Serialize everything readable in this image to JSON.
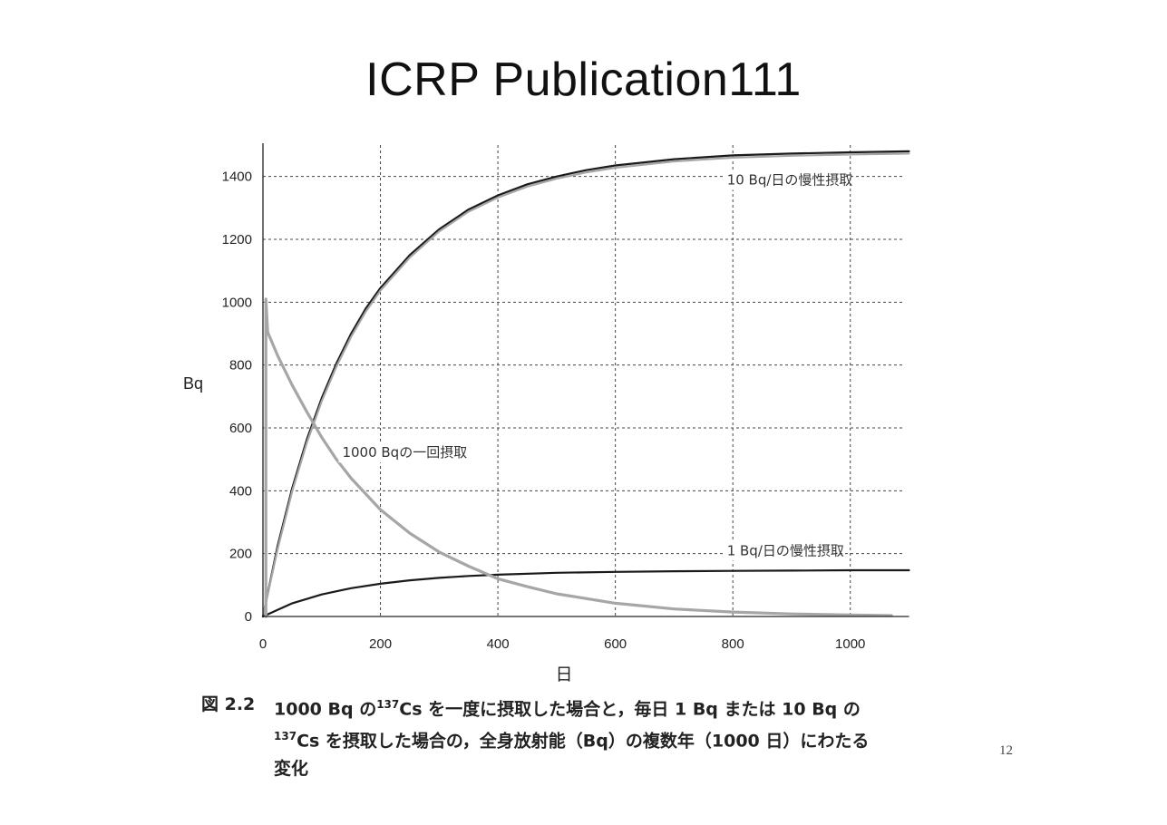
{
  "slide": {
    "title": "ICRP Publication111",
    "page_number": "12"
  },
  "caption": {
    "figure_number": "図 2.2",
    "line1_pre": "1000 Bq の",
    "line1_sup": "137",
    "line1_post": "Cs を一度に摂取した場合と，毎日 1 Bq または 10 Bq の",
    "line2_sup": "137",
    "line2_post": "Cs を摂取した場合の，全身放射能（Bq）の複数年（1000 日）にわたる",
    "line3": "変化"
  },
  "chart_data": {
    "type": "line",
    "xlabel": "日",
    "ylabel": "Bq",
    "xlim": [
      0,
      1100
    ],
    "ylim": [
      0,
      1500
    ],
    "xticks": [
      0,
      200,
      400,
      600,
      800,
      1000
    ],
    "yticks": [
      0,
      200,
      400,
      600,
      800,
      1000,
      1200,
      1400
    ],
    "grid": true,
    "grid_style": "dashed",
    "colors": {
      "black": "#1a1a1a",
      "gray": "#a6a6a6",
      "grid": "#444444",
      "axis": "#222222"
    },
    "annotations": [
      {
        "text": "10 Bq/日の慢性摂取",
        "x": 790,
        "y": 1375
      },
      {
        "text": "1000 Bqの一回摂取",
        "x": 135,
        "y": 507
      },
      {
        "text": "1 Bq/日の慢性摂取",
        "x": 790,
        "y": 195
      }
    ],
    "series": [
      {
        "color": "black",
        "width": 2.2,
        "x": [
          0,
          25,
          50,
          75,
          100,
          125,
          150,
          175,
          200,
          250,
          300,
          350,
          400,
          450,
          500,
          550,
          600,
          700,
          800,
          900,
          1000,
          1100
        ],
        "y": [
          0,
          225,
          410,
          565,
          695,
          805,
          900,
          980,
          1045,
          1150,
          1232,
          1295,
          1340,
          1375,
          1400,
          1420,
          1435,
          1455,
          1467,
          1473,
          1477,
          1480
        ]
      },
      {
        "color": "gray",
        "width": 2.2,
        "x": [
          0,
          25,
          50,
          75,
          100,
          125,
          150,
          175,
          200,
          250,
          300,
          350,
          400,
          450,
          500,
          550,
          600,
          700,
          800,
          900,
          1000,
          1100
        ],
        "y": [
          0,
          215,
          400,
          555,
          685,
          795,
          890,
          970,
          1037,
          1142,
          1225,
          1288,
          1333,
          1368,
          1393,
          1413,
          1428,
          1448,
          1460,
          1466,
          1470,
          1473
        ]
      },
      {
        "color": "black",
        "width": 2.2,
        "x": [
          0,
          50,
          100,
          150,
          200,
          250,
          300,
          350,
          400,
          500,
          600,
          700,
          800,
          900,
          1000,
          1100
        ],
        "y": [
          0,
          42,
          70,
          90,
          104,
          115,
          123,
          129,
          133,
          139,
          142,
          144,
          145,
          146,
          147,
          147
        ]
      },
      {
        "color": "gray",
        "width": 3.2,
        "x": [
          5,
          5,
          8,
          25,
          50,
          75,
          100,
          125,
          150,
          200,
          250,
          300,
          350,
          400,
          450,
          500,
          600,
          700,
          800,
          900,
          1000,
          1070
        ],
        "y": [
          0,
          1010,
          905,
          830,
          735,
          650,
          570,
          500,
          440,
          340,
          265,
          205,
          160,
          120,
          95,
          72,
          42,
          24,
          14,
          8,
          5,
          3
        ]
      }
    ]
  }
}
